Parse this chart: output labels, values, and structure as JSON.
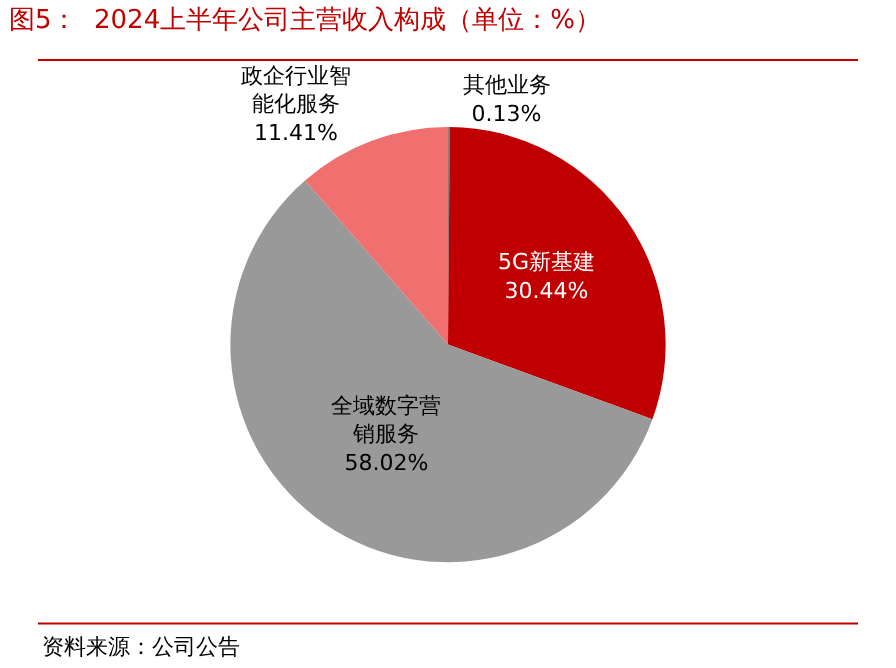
{
  "chart_data": {
    "type": "pie",
    "title": "图5：  2024上半年公司主营收入构成（单位：%）",
    "categories": [
      "其他业务",
      "5G新基建",
      "全域数字营销服务",
      "政企行业智能化服务"
    ],
    "values": [
      0.13,
      30.44,
      58.02,
      11.41
    ],
    "value_labels": [
      "0.13%",
      "30.44%",
      "58.02%",
      "11.41%"
    ],
    "colors": [
      "#7f7f7f",
      "#c00000",
      "#999999",
      "#f07070"
    ],
    "annotations": [
      "资料来源：公司公告"
    ],
    "legend": false
  }
}
